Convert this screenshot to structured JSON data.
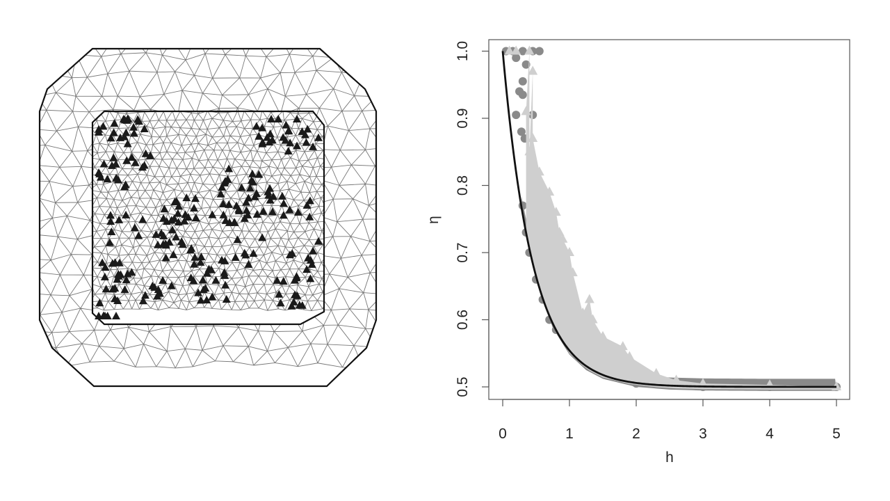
{
  "chart_data": [
    {
      "type": "diagram",
      "description_panel": "mesh",
      "mesh_color": "#777777",
      "boundary_color": "#111111",
      "marker": "triangle",
      "marker_color": "#1a1a1a"
    },
    {
      "type": "scatter",
      "xlabel": "h",
      "ylabel": "η",
      "xlim": [
        0,
        5.2
      ],
      "ylim": [
        0.48,
        1.03
      ],
      "xticks": [
        "0",
        "1",
        "2",
        "3",
        "4",
        "5"
      ],
      "yticks": [
        "0.5",
        "0.6",
        "0.7",
        "0.8",
        "0.9",
        "1.0"
      ],
      "grid": false,
      "series": [
        {
          "marker": "circle",
          "color": "#8a8a8a",
          "points": [
            [
              0.05,
              1.0
            ],
            [
              0.15,
              1.0
            ],
            [
              0.3,
              1.0
            ],
            [
              0.45,
              1.0
            ],
            [
              0.55,
              1.0
            ],
            [
              0.2,
              0.99
            ],
            [
              0.35,
              0.98
            ],
            [
              0.3,
              0.955
            ],
            [
              0.25,
              0.94
            ],
            [
              0.3,
              0.935
            ],
            [
              0.2,
              0.905
            ],
            [
              0.45,
              0.905
            ],
            [
              0.28,
              0.88
            ],
            [
              0.33,
              0.87
            ],
            [
              0.3,
              0.77
            ],
            [
              0.35,
              0.73
            ],
            [
              0.4,
              0.7
            ],
            [
              0.5,
              0.66
            ],
            [
              0.6,
              0.63
            ],
            [
              0.7,
              0.6
            ],
            [
              0.8,
              0.585
            ],
            [
              1.0,
              0.56
            ],
            [
              1.2,
              0.54
            ],
            [
              1.5,
              0.52
            ],
            [
              2.0,
              0.505
            ],
            [
              3.0,
              0.5
            ],
            [
              4.0,
              0.5
            ],
            [
              5.0,
              0.5
            ]
          ]
        },
        {
          "marker": "triangle",
          "color": "#cfcfcf",
          "points": [
            [
              0.1,
              1.0
            ],
            [
              0.2,
              1.0
            ],
            [
              0.4,
              1.0
            ],
            [
              0.45,
              0.97
            ],
            [
              0.35,
              0.91
            ],
            [
              0.45,
              0.87
            ],
            [
              0.4,
              0.85
            ],
            [
              0.55,
              0.82
            ],
            [
              0.7,
              0.79
            ],
            [
              0.8,
              0.76
            ],
            [
              0.85,
              0.73
            ],
            [
              0.9,
              0.72
            ],
            [
              1.0,
              0.7
            ],
            [
              1.05,
              0.67
            ],
            [
              1.3,
              0.63
            ],
            [
              1.2,
              0.61
            ],
            [
              1.35,
              0.6
            ],
            [
              1.5,
              0.575
            ],
            [
              1.8,
              0.56
            ],
            [
              1.9,
              0.545
            ],
            [
              2.3,
              0.52
            ],
            [
              2.6,
              0.51
            ],
            [
              3.0,
              0.505
            ],
            [
              4.0,
              0.503
            ],
            [
              5.0,
              0.5
            ]
          ]
        }
      ],
      "curve": {
        "color": "#111111",
        "x": [
          0,
          0.1,
          0.25,
          0.5,
          0.75,
          1,
          1.25,
          1.5,
          2,
          2.5,
          3,
          4,
          5
        ],
        "y": [
          1.0,
          0.901,
          0.787,
          0.664,
          0.594,
          0.554,
          0.531,
          0.518,
          0.506,
          0.502,
          0.5006,
          0.5,
          0.5
        ]
      }
    }
  ]
}
